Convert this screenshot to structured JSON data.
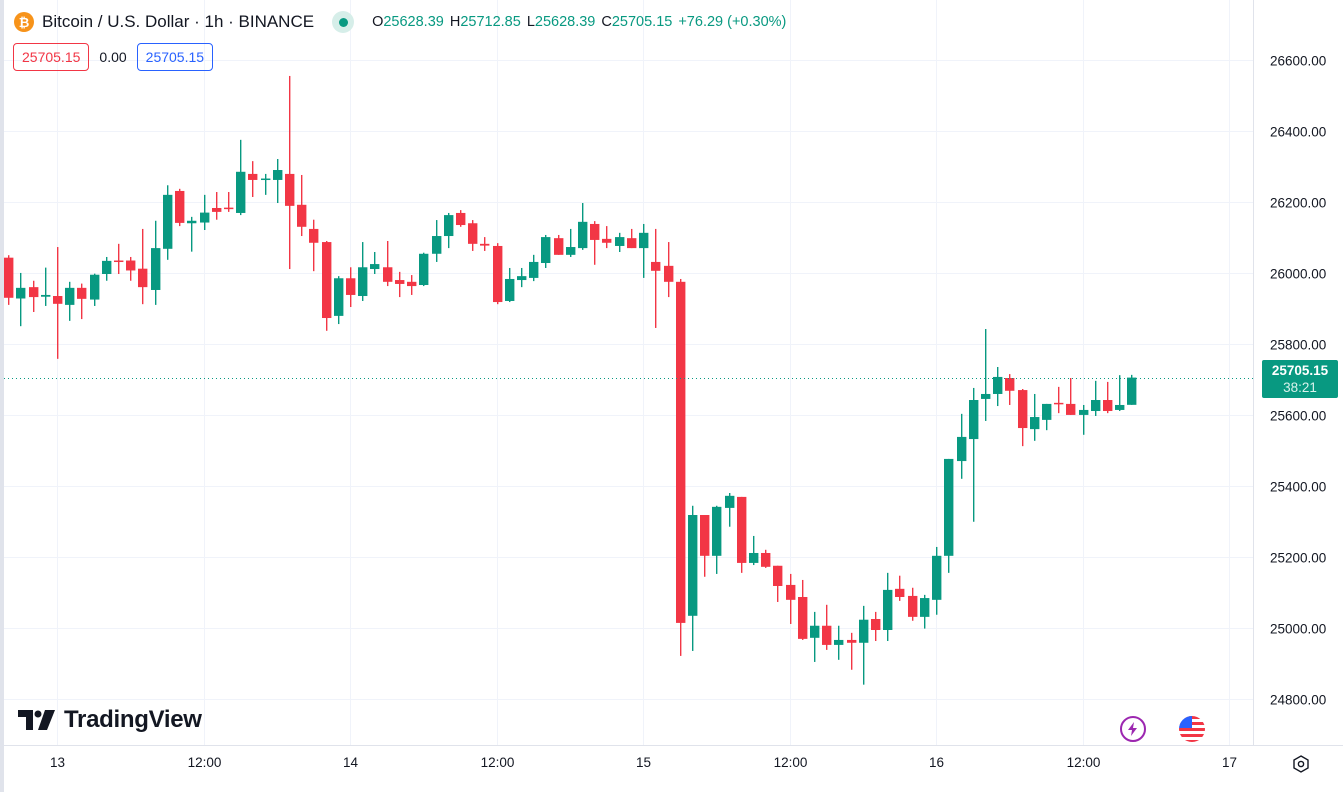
{
  "header": {
    "symbol_title": "Bitcoin / U.S. Dollar · 1h · BINANCE",
    "ohlc": {
      "o_label": "O",
      "o": "25628.39",
      "h_label": "H",
      "h": "25712.85",
      "l_label": "L",
      "l": "25628.39",
      "c_label": "C",
      "c": "25705.15",
      "change": "+76.29 (+0.30%)"
    },
    "sell_price": "25705.15",
    "spread": "0.00",
    "buy_price": "25705.15"
  },
  "last_price": {
    "value": "25705.15",
    "countdown": "38:21"
  },
  "branding": {
    "logo_text": "TradingView"
  },
  "colors": {
    "up": "#089981",
    "down": "#f23645",
    "grid": "#f0f3fa",
    "accent": "#089981"
  },
  "chart_data": {
    "type": "candlestick",
    "title": "Bitcoin / U.S. Dollar · 1h · BINANCE",
    "interval": "1h",
    "y_ticks": [
      "24800.00",
      "25000.00",
      "25200.00",
      "25400.00",
      "25600.00",
      "25800.00",
      "26000.00",
      "26200.00",
      "26400.00",
      "26600.00"
    ],
    "y_tick_values": [
      24800,
      25000,
      25200,
      25400,
      25600,
      25800,
      26000,
      26200,
      26400,
      26600
    ],
    "ylim": [
      24670,
      26769
    ],
    "x_ticks": [
      "13",
      "12:00",
      "14",
      "12:00",
      "15",
      "12:00",
      "16",
      "12:00",
      "17"
    ],
    "x_tick_hours": [
      0,
      12,
      24,
      36,
      48,
      60,
      72,
      84,
      96
    ],
    "first_candle_hour": -4,
    "grid": true,
    "candles_ohlc": [
      [
        26043,
        26050,
        25910,
        25930
      ],
      [
        25928,
        26000,
        25850,
        25958
      ],
      [
        25960,
        25978,
        25890,
        25932
      ],
      [
        25933,
        26015,
        25907,
        25938
      ],
      [
        25935,
        26073,
        25758,
        25913
      ],
      [
        25910,
        25975,
        25865,
        25958
      ],
      [
        25958,
        25970,
        25870,
        25927
      ],
      [
        25925,
        25998,
        25907,
        25995
      ],
      [
        25997,
        26045,
        25978,
        26034
      ],
      [
        26035,
        26082,
        25997,
        26033
      ],
      [
        26035,
        26045,
        25978,
        26007
      ],
      [
        26012,
        26124,
        25912,
        25960
      ],
      [
        25952,
        26147,
        25910,
        26070
      ],
      [
        26068,
        26247,
        26037,
        26220
      ],
      [
        26231,
        26237,
        26132,
        26141
      ],
      [
        26140,
        26158,
        26060,
        26147
      ],
      [
        26142,
        26220,
        26121,
        26170
      ],
      [
        26183,
        26228,
        26150,
        26172
      ],
      [
        26184,
        26228,
        26172,
        26182
      ],
      [
        26169,
        26375,
        26163,
        26285
      ],
      [
        26279,
        26315,
        26214,
        26262
      ],
      [
        26263,
        26279,
        26220,
        26266
      ],
      [
        26262,
        26321,
        26197,
        26290
      ],
      [
        26279,
        26555,
        26011,
        26189
      ],
      [
        26192,
        26276,
        26104,
        26130
      ],
      [
        26124,
        26150,
        26005,
        26085
      ],
      [
        26087,
        26090,
        25837,
        25873
      ],
      [
        25879,
        25991,
        25856,
        25985
      ],
      [
        25985,
        26016,
        25904,
        25938
      ],
      [
        25935,
        26087,
        25921,
        26016
      ],
      [
        26011,
        26059,
        25997,
        26025
      ],
      [
        26016,
        26090,
        25963,
        25975
      ],
      [
        25980,
        26003,
        25932,
        25969
      ],
      [
        25975,
        25994,
        25938,
        25963
      ],
      [
        25966,
        26057,
        25963,
        26054
      ],
      [
        26054,
        26149,
        26031,
        26104
      ],
      [
        26104,
        26169,
        26070,
        26163
      ],
      [
        26169,
        26177,
        26130,
        26135
      ],
      [
        26140,
        26149,
        26062,
        26082
      ],
      [
        26082,
        26101,
        26062,
        26077
      ],
      [
        26076,
        26084,
        25912,
        25918
      ],
      [
        25921,
        26014,
        25918,
        25983
      ],
      [
        25980,
        26014,
        25960,
        25991
      ],
      [
        25986,
        26051,
        25977,
        26031
      ],
      [
        26028,
        26107,
        26014,
        26101
      ],
      [
        26098,
        26107,
        26051,
        26051
      ],
      [
        26051,
        26124,
        26045,
        26073
      ],
      [
        26070,
        26197,
        26065,
        26144
      ],
      [
        26138,
        26146,
        26023,
        26093
      ],
      [
        26096,
        26132,
        26070,
        26085
      ],
      [
        26076,
        26113,
        26059,
        26101
      ],
      [
        26098,
        26124,
        26070,
        26070
      ],
      [
        26070,
        26138,
        25986,
        26113
      ],
      [
        26031,
        26124,
        25845,
        26006
      ],
      [
        26020,
        26087,
        25932,
        25975
      ],
      [
        25975,
        25983,
        24921,
        25014
      ],
      [
        25034,
        25344,
        24935,
        25318
      ],
      [
        25318,
        25318,
        25144,
        25203
      ],
      [
        25203,
        25344,
        25152,
        25341
      ],
      [
        25338,
        25380,
        25285,
        25372
      ],
      [
        25369,
        25369,
        25155,
        25183
      ],
      [
        25183,
        25259,
        25177,
        25211
      ],
      [
        25211,
        25220,
        25169,
        25172
      ],
      [
        25175,
        25175,
        25073,
        25118
      ],
      [
        25121,
        25152,
        25011,
        25079
      ],
      [
        25087,
        25135,
        24966,
        24969
      ],
      [
        24972,
        25045,
        24904,
        25006
      ],
      [
        25006,
        25065,
        24938,
        24952
      ],
      [
        24952,
        25006,
        24910,
        24966
      ],
      [
        24966,
        24986,
        24882,
        24958
      ],
      [
        24958,
        25062,
        24840,
        25023
      ],
      [
        25025,
        25045,
        24963,
        24994
      ],
      [
        24994,
        25155,
        24963,
        25107
      ],
      [
        25110,
        25147,
        25076,
        25087
      ],
      [
        25090,
        25113,
        25020,
        25031
      ],
      [
        25031,
        25093,
        24998,
        25084
      ],
      [
        25079,
        25228,
        25037,
        25203
      ],
      [
        25203,
        25476,
        25155,
        25476
      ],
      [
        25470,
        25603,
        25420,
        25538
      ],
      [
        25532,
        25676,
        25299,
        25642
      ],
      [
        25645,
        25842,
        25583,
        25659
      ],
      [
        25659,
        25735,
        25625,
        25707
      ],
      [
        25704,
        25715,
        25628,
        25668
      ],
      [
        25670,
        25673,
        25512,
        25563
      ],
      [
        25560,
        25659,
        25527,
        25594
      ],
      [
        25586,
        25631,
        25557,
        25631
      ],
      [
        25634,
        25679,
        25605,
        25631
      ],
      [
        25631,
        25704,
        25600,
        25600
      ],
      [
        25600,
        25628,
        25544,
        25614
      ],
      [
        25611,
        25696,
        25597,
        25642
      ],
      [
        25642,
        25693,
        25605,
        25611
      ],
      [
        25614,
        25712,
        25611,
        25628
      ],
      [
        25628.39,
        25712.85,
        25628.39,
        25705.15
      ]
    ],
    "last_price": 25705.15
  }
}
